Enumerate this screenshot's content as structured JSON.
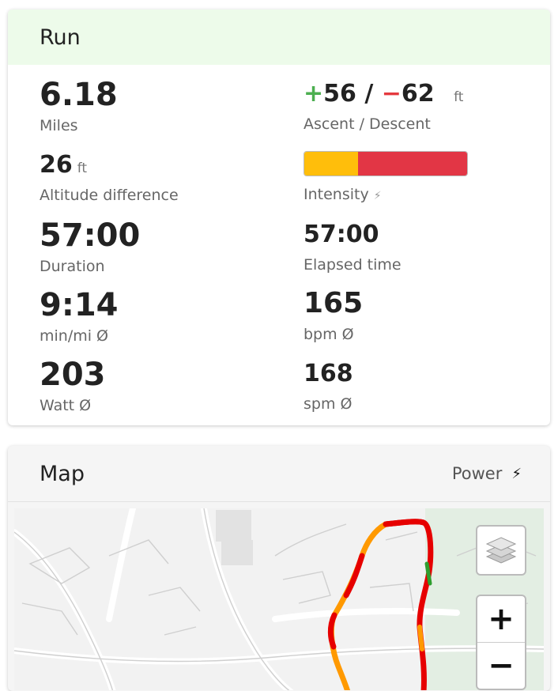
{
  "run": {
    "title": "Run",
    "distance": {
      "value": "6.18",
      "label": "Miles"
    },
    "ascent": {
      "plus": "+",
      "up": "56",
      "sep": "/",
      "minus": "−",
      "down": "62",
      "unit": "ft",
      "label": "Ascent / Descent"
    },
    "altitude": {
      "value": "26",
      "unit": "ft",
      "label": "Altitude difference"
    },
    "intensity": {
      "label": "Intensity",
      "segments": [
        {
          "color": "#ffbe0b",
          "fraction": 0.33
        },
        {
          "color": "#e23645",
          "fraction": 0.67
        }
      ]
    },
    "duration": {
      "value": "57:00",
      "label": "Duration"
    },
    "elapsed": {
      "value": "57:00",
      "label": "Elapsed time"
    },
    "pace": {
      "value": "9:14",
      "label": "min/mi Ø"
    },
    "heart_rate": {
      "value": "165",
      "label": "bpm Ø"
    },
    "power": {
      "value": "203",
      "label": "Watt Ø"
    },
    "cadence": {
      "value": "168",
      "label": "spm Ø"
    }
  },
  "map": {
    "title": "Map",
    "overlay_label": "Power",
    "overlay_icon": "lightning-bolt-icon",
    "zoom_in": "+",
    "zoom_out": "−",
    "layers_icon": "layers-icon",
    "route_colors": {
      "high": "#ff9900",
      "max": "#e60000",
      "low": "#2e9e2e"
    }
  },
  "colors": {
    "header_bg": "#edfbea",
    "plus": "#4caf50",
    "minus": "#e5393f"
  }
}
